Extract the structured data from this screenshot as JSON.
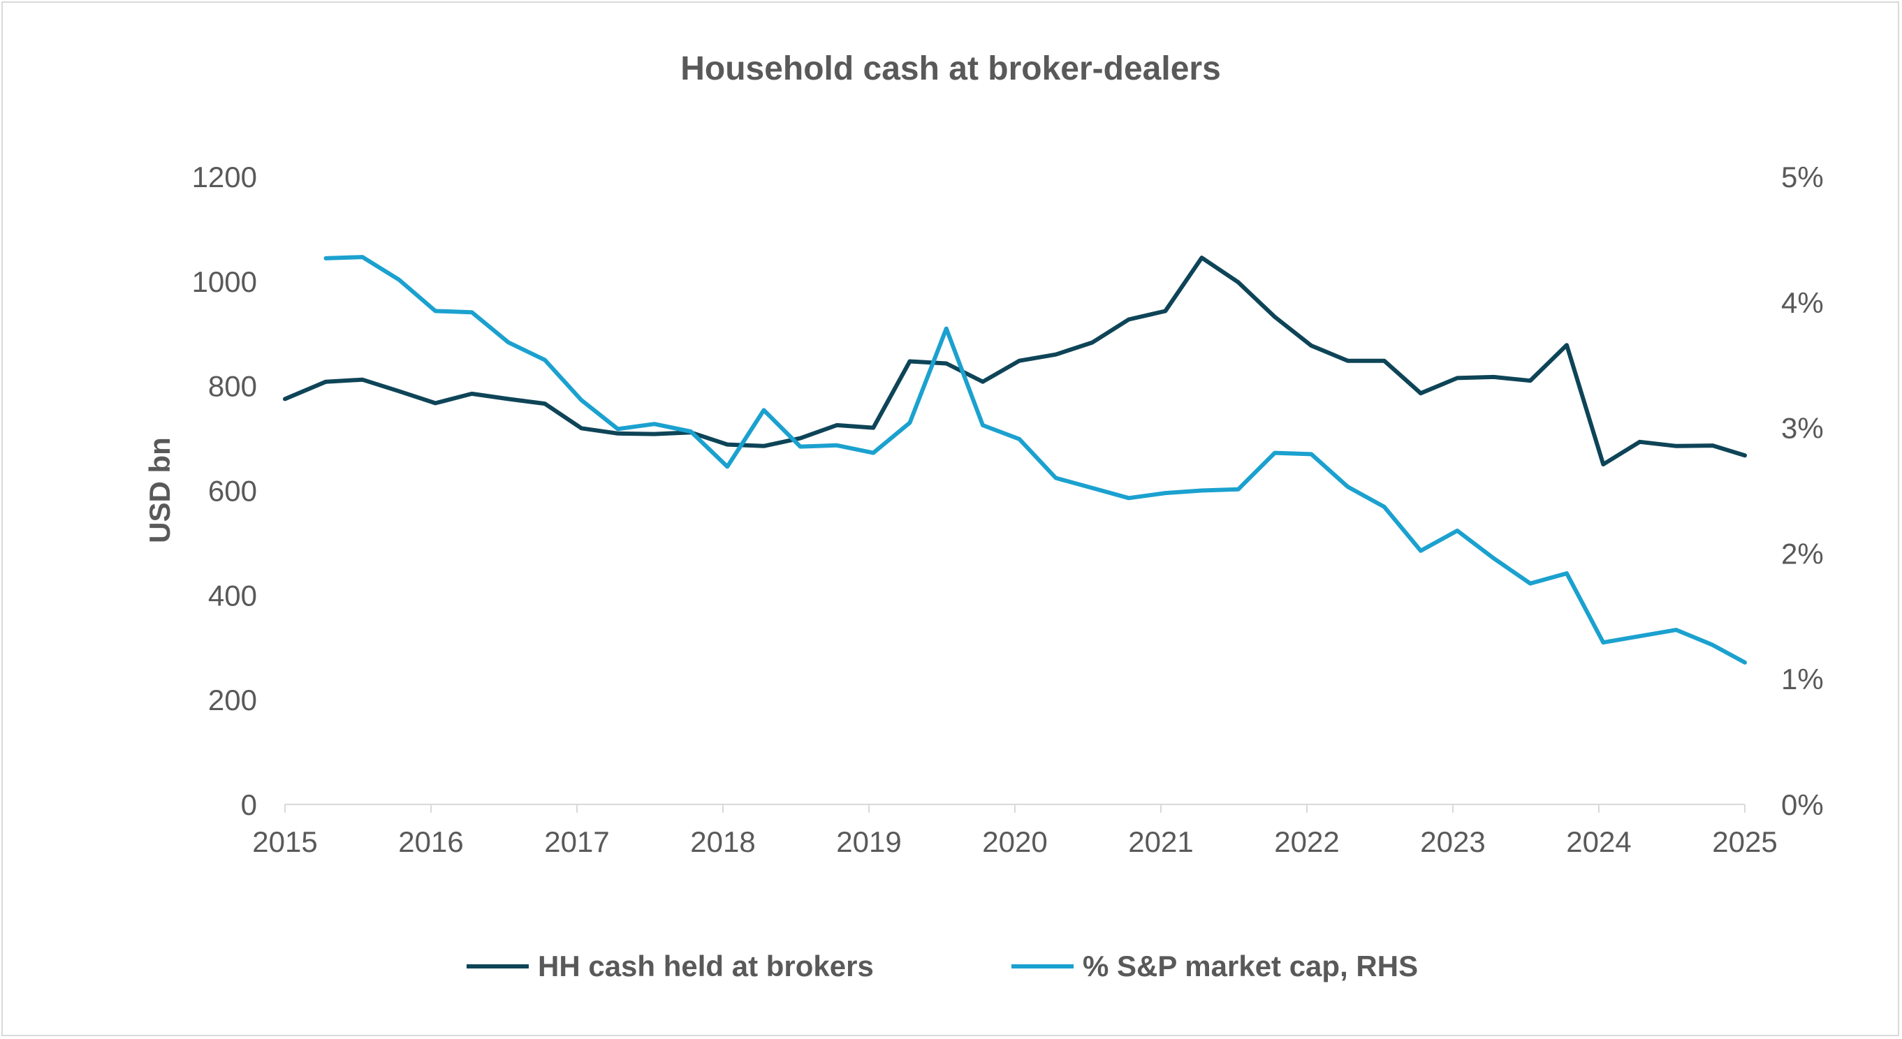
{
  "chart_data": {
    "type": "line",
    "title": "Household cash at broker-dealers",
    "ylabel": "USD bn",
    "y2label": "",
    "ylim": [
      0,
      1200
    ],
    "y2lim": [
      0,
      5
    ],
    "xlim": [
      2015,
      2025
    ],
    "x_ticks": [
      "2015",
      "2016",
      "2017",
      "2018",
      "2019",
      "2020",
      "2021",
      "2022",
      "2023",
      "2024",
      "2025"
    ],
    "y_ticks": [
      "0",
      "200",
      "400",
      "600",
      "800",
      "1000",
      "1200"
    ],
    "y2_ticks": [
      "0%",
      "1%",
      "2%",
      "3%",
      "4%",
      "5%"
    ],
    "grid": false,
    "legend_position": "bottom",
    "series": [
      {
        "name": "HH cash held at brokers",
        "axis": "left",
        "color": "#0e4457",
        "x": [
          2015.0,
          2015.28,
          2015.53,
          2015.78,
          2016.03,
          2016.28,
          2016.53,
          2016.78,
          2017.03,
          2017.28,
          2017.53,
          2017.78,
          2018.03,
          2018.28,
          2018.53,
          2018.78,
          2019.03,
          2019.28,
          2019.53,
          2019.78,
          2020.03,
          2020.28,
          2020.53,
          2020.78,
          2021.03,
          2021.28,
          2021.53,
          2021.78,
          2022.03,
          2022.28,
          2022.53,
          2022.78,
          2023.03,
          2023.28,
          2023.53,
          2023.78,
          2024.03,
          2024.28,
          2024.53,
          2024.78,
          2025.0
        ],
        "y": [
          775,
          808,
          812,
          790,
          767,
          785,
          775,
          766,
          719,
          709,
          708,
          711,
          688,
          685,
          700,
          725,
          720,
          847,
          843,
          808,
          848,
          860,
          883,
          927,
          943,
          1045,
          998,
          932,
          877,
          848,
          848,
          786,
          815,
          817,
          810,
          878,
          650,
          693,
          685,
          686,
          667
        ]
      },
      {
        "name": "% S&P market cap, RHS",
        "axis": "right",
        "color": "#1ba1cf",
        "x": [
          2015.28,
          2015.53,
          2015.78,
          2016.03,
          2016.28,
          2016.53,
          2016.78,
          2017.03,
          2017.28,
          2017.53,
          2017.78,
          2018.03,
          2018.28,
          2018.53,
          2018.78,
          2019.03,
          2019.28,
          2019.53,
          2019.78,
          2020.03,
          2020.28,
          2020.53,
          2020.78,
          2021.03,
          2021.28,
          2021.53,
          2021.78,
          2022.03,
          2022.28,
          2022.53,
          2022.78,
          2023.03,
          2023.28,
          2023.53,
          2023.78,
          2024.03,
          2024.28,
          2024.53,
          2024.78,
          2025.0
        ],
        "y": [
          4.35,
          4.36,
          4.18,
          3.93,
          3.92,
          3.68,
          3.54,
          3.22,
          2.99,
          3.03,
          2.97,
          2.69,
          3.14,
          2.85,
          2.86,
          2.8,
          3.04,
          3.79,
          3.02,
          2.91,
          2.6,
          2.52,
          2.44,
          2.48,
          2.5,
          2.51,
          2.8,
          2.79,
          2.53,
          2.37,
          2.02,
          2.18,
          1.96,
          1.76,
          1.84,
          1.29,
          1.34,
          1.39,
          1.27,
          1.13
        ]
      }
    ]
  }
}
